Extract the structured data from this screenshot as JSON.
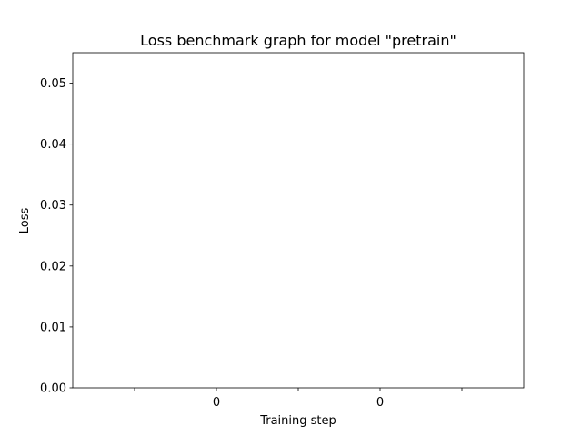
{
  "chart_data": {
    "type": "line",
    "title": "Loss benchmark graph for model \"pretrain\"",
    "xlabel": "Training step",
    "ylabel": "Loss",
    "ylim": [
      0,
      0.055
    ],
    "y_ticks": [
      0.0,
      0.01,
      0.02,
      0.03,
      0.04,
      0.05
    ],
    "y_tick_labels": [
      "0.00",
      "0.01",
      "0.02",
      "0.03",
      "0.04",
      "0.05"
    ],
    "x_tick_labels": [
      "",
      "0",
      "",
      "0",
      ""
    ],
    "series": [],
    "grid": false,
    "legend": "none"
  }
}
